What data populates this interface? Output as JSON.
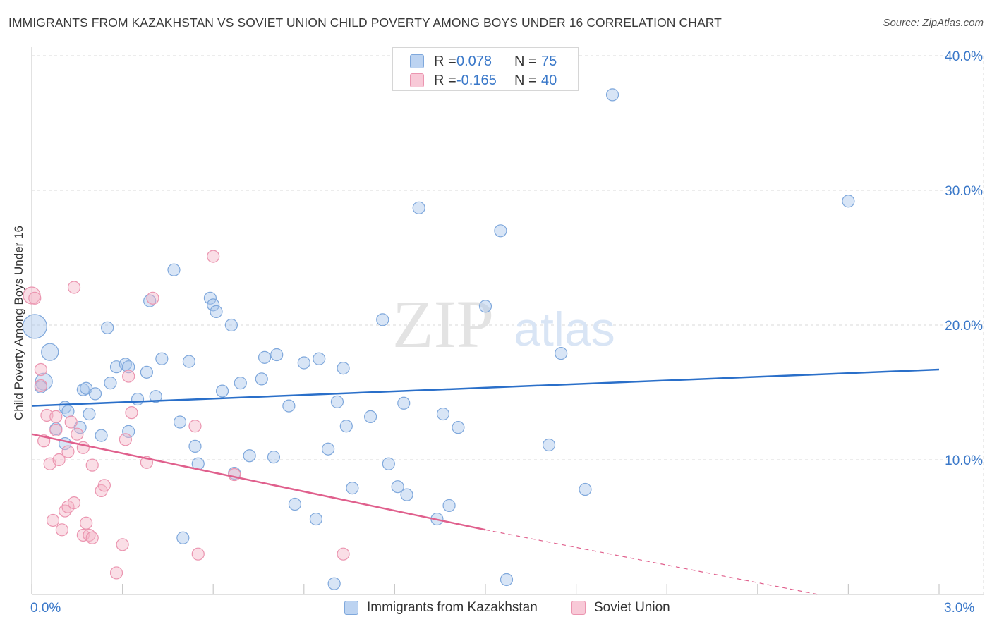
{
  "title": "IMMIGRANTS FROM KAZAKHSTAN VS SOVIET UNION CHILD POVERTY AMONG BOYS UNDER 16 CORRELATION CHART",
  "source": "Source: ZipAtlas.com",
  "watermark": {
    "zip": "ZIP",
    "atlas": "atlas"
  },
  "legend": {
    "rows": [
      {
        "r_label": "R =",
        "r_value": "0.078",
        "n_label": "N =",
        "n_value": "75"
      },
      {
        "r_label": "R =",
        "r_value": "-0.165",
        "n_label": "N =",
        "n_value": "40"
      }
    ],
    "bottom": [
      "Immigrants from Kazakhstan",
      "Soviet Union"
    ]
  },
  "colors": {
    "blue_fill": "#a9c6ec",
    "blue_stroke": "#7fa8dc",
    "blue_line": "#2a6fc9",
    "pink_fill": "#f4b5c8",
    "pink_stroke": "#eb95b0",
    "pink_line": "#e0608d",
    "grid": "#d8d8d8",
    "axis": "#9a9a9a",
    "tick_text": "#3a78c9"
  },
  "chart_data": {
    "type": "scatter",
    "title": "IMMIGRANTS FROM KAZAKHSTAN VS SOVIET UNION CHILD POVERTY AMONG BOYS UNDER 16 CORRELATION CHART",
    "xlabel": "",
    "ylabel": "Child Poverty Among Boys Under 16",
    "xlim": [
      0,
      3.0
    ],
    "ylim": [
      0,
      40
    ],
    "x_tick_labels": [
      "0.0%",
      "3.0%"
    ],
    "y_ticks": [
      10,
      20,
      30,
      40
    ],
    "y_tick_labels": [
      "10.0%",
      "20.0%",
      "30.0%",
      "40.0%"
    ],
    "grid": true,
    "series": [
      {
        "name": "Immigrants from Kazakhstan",
        "color": "blue",
        "trend": {
          "x0": 0,
          "y0": 14.0,
          "x1": 3.0,
          "y1": 16.7
        },
        "points": [
          {
            "x": 0.01,
            "y": 19.9,
            "s": 3
          },
          {
            "x": 0.06,
            "y": 18.0,
            "s": 2
          },
          {
            "x": 0.04,
            "y": 15.8,
            "s": 2
          },
          {
            "x": 0.03,
            "y": 15.4,
            "s": 1
          },
          {
            "x": 0.08,
            "y": 12.3,
            "s": 1
          },
          {
            "x": 0.11,
            "y": 13.9,
            "s": 1
          },
          {
            "x": 0.12,
            "y": 13.6,
            "s": 1
          },
          {
            "x": 0.11,
            "y": 11.2,
            "s": 1
          },
          {
            "x": 0.17,
            "y": 15.2,
            "s": 1
          },
          {
            "x": 0.18,
            "y": 15.3,
            "s": 1
          },
          {
            "x": 0.21,
            "y": 14.9,
            "s": 1
          },
          {
            "x": 0.19,
            "y": 13.4,
            "s": 1
          },
          {
            "x": 0.16,
            "y": 12.4,
            "s": 1
          },
          {
            "x": 0.23,
            "y": 11.8,
            "s": 1
          },
          {
            "x": 0.25,
            "y": 19.8,
            "s": 1
          },
          {
            "x": 0.26,
            "y": 15.7,
            "s": 1
          },
          {
            "x": 0.28,
            "y": 16.9,
            "s": 1
          },
          {
            "x": 0.31,
            "y": 17.1,
            "s": 1
          },
          {
            "x": 0.32,
            "y": 16.9,
            "s": 1
          },
          {
            "x": 0.32,
            "y": 12.1,
            "s": 1
          },
          {
            "x": 0.35,
            "y": 14.5,
            "s": 1
          },
          {
            "x": 0.38,
            "y": 16.5,
            "s": 1
          },
          {
            "x": 0.39,
            "y": 21.8,
            "s": 1
          },
          {
            "x": 0.41,
            "y": 14.7,
            "s": 1
          },
          {
            "x": 0.43,
            "y": 17.5,
            "s": 1
          },
          {
            "x": 0.47,
            "y": 24.1,
            "s": 1
          },
          {
            "x": 0.49,
            "y": 12.8,
            "s": 1
          },
          {
            "x": 0.52,
            "y": 17.3,
            "s": 1
          },
          {
            "x": 0.54,
            "y": 11.0,
            "s": 1
          },
          {
            "x": 0.55,
            "y": 9.7,
            "s": 1
          },
          {
            "x": 0.5,
            "y": 4.2,
            "s": 1
          },
          {
            "x": 0.59,
            "y": 22.0,
            "s": 1
          },
          {
            "x": 0.6,
            "y": 21.5,
            "s": 1
          },
          {
            "x": 0.61,
            "y": 21.0,
            "s": 1
          },
          {
            "x": 0.63,
            "y": 15.1,
            "s": 1
          },
          {
            "x": 0.66,
            "y": 20.0,
            "s": 1
          },
          {
            "x": 0.67,
            "y": 9.0,
            "s": 1
          },
          {
            "x": 0.69,
            "y": 15.7,
            "s": 1
          },
          {
            "x": 0.72,
            "y": 10.3,
            "s": 1
          },
          {
            "x": 0.76,
            "y": 16.0,
            "s": 1
          },
          {
            "x": 0.77,
            "y": 17.6,
            "s": 1
          },
          {
            "x": 0.8,
            "y": 10.2,
            "s": 1
          },
          {
            "x": 0.81,
            "y": 17.8,
            "s": 1
          },
          {
            "x": 0.85,
            "y": 14.0,
            "s": 1
          },
          {
            "x": 0.87,
            "y": 6.7,
            "s": 1
          },
          {
            "x": 0.9,
            "y": 17.2,
            "s": 1
          },
          {
            "x": 0.95,
            "y": 17.5,
            "s": 1
          },
          {
            "x": 0.94,
            "y": 5.6,
            "s": 1
          },
          {
            "x": 0.98,
            "y": 10.8,
            "s": 1
          },
          {
            "x": 1.0,
            "y": 0.8,
            "s": 1
          },
          {
            "x": 1.01,
            "y": 14.3,
            "s": 1
          },
          {
            "x": 1.03,
            "y": 16.8,
            "s": 1
          },
          {
            "x": 1.04,
            "y": 12.5,
            "s": 1
          },
          {
            "x": 1.06,
            "y": 7.9,
            "s": 1
          },
          {
            "x": 1.12,
            "y": 13.2,
            "s": 1
          },
          {
            "x": 1.16,
            "y": 20.4,
            "s": 1
          },
          {
            "x": 1.18,
            "y": 9.7,
            "s": 1
          },
          {
            "x": 1.21,
            "y": 8.0,
            "s": 1
          },
          {
            "x": 1.23,
            "y": 14.2,
            "s": 1
          },
          {
            "x": 1.24,
            "y": 7.4,
            "s": 1
          },
          {
            "x": 1.28,
            "y": 28.7,
            "s": 1
          },
          {
            "x": 1.34,
            "y": 5.6,
            "s": 1
          },
          {
            "x": 1.36,
            "y": 13.4,
            "s": 1
          },
          {
            "x": 1.38,
            "y": 6.6,
            "s": 1
          },
          {
            "x": 1.41,
            "y": 12.4,
            "s": 1
          },
          {
            "x": 1.5,
            "y": 21.4,
            "s": 1
          },
          {
            "x": 1.55,
            "y": 27.0,
            "s": 1
          },
          {
            "x": 1.57,
            "y": 1.1,
            "s": 1
          },
          {
            "x": 1.71,
            "y": 11.1,
            "s": 1
          },
          {
            "x": 1.75,
            "y": 17.9,
            "s": 1
          },
          {
            "x": 1.83,
            "y": 7.8,
            "s": 1
          },
          {
            "x": 1.92,
            "y": 37.1,
            "s": 1
          },
          {
            "x": 2.7,
            "y": 29.2,
            "s": 1
          }
        ]
      },
      {
        "name": "Soviet Union",
        "color": "pink",
        "trend": {
          "x0": 0,
          "y0": 11.9,
          "x1": 1.5,
          "y1": 4.8,
          "dash_x1": 2.6,
          "dash_y1": 0
        },
        "points": [
          {
            "x": 0.0,
            "y": 22.2,
            "s": 2
          },
          {
            "x": 0.01,
            "y": 22.0,
            "s": 1
          },
          {
            "x": 0.03,
            "y": 16.7,
            "s": 1
          },
          {
            "x": 0.03,
            "y": 15.5,
            "s": 1
          },
          {
            "x": 0.04,
            "y": 11.4,
            "s": 1
          },
          {
            "x": 0.05,
            "y": 13.3,
            "s": 1
          },
          {
            "x": 0.06,
            "y": 9.7,
            "s": 1
          },
          {
            "x": 0.07,
            "y": 5.5,
            "s": 1
          },
          {
            "x": 0.08,
            "y": 13.2,
            "s": 1
          },
          {
            "x": 0.08,
            "y": 12.2,
            "s": 1
          },
          {
            "x": 0.09,
            "y": 10.0,
            "s": 1
          },
          {
            "x": 0.1,
            "y": 4.8,
            "s": 1
          },
          {
            "x": 0.11,
            "y": 6.2,
            "s": 1
          },
          {
            "x": 0.12,
            "y": 6.5,
            "s": 1
          },
          {
            "x": 0.12,
            "y": 10.6,
            "s": 1
          },
          {
            "x": 0.13,
            "y": 12.8,
            "s": 1
          },
          {
            "x": 0.14,
            "y": 6.8,
            "s": 1
          },
          {
            "x": 0.14,
            "y": 22.8,
            "s": 1
          },
          {
            "x": 0.15,
            "y": 11.9,
            "s": 1
          },
          {
            "x": 0.17,
            "y": 10.9,
            "s": 1
          },
          {
            "x": 0.17,
            "y": 4.4,
            "s": 1
          },
          {
            "x": 0.18,
            "y": 5.3,
            "s": 1
          },
          {
            "x": 0.19,
            "y": 4.4,
            "s": 1
          },
          {
            "x": 0.2,
            "y": 4.2,
            "s": 1
          },
          {
            "x": 0.2,
            "y": 9.6,
            "s": 1
          },
          {
            "x": 0.23,
            "y": 7.7,
            "s": 1
          },
          {
            "x": 0.24,
            "y": 8.1,
            "s": 1
          },
          {
            "x": 0.28,
            "y": 1.6,
            "s": 1
          },
          {
            "x": 0.3,
            "y": 3.7,
            "s": 1
          },
          {
            "x": 0.31,
            "y": 11.5,
            "s": 1
          },
          {
            "x": 0.32,
            "y": 16.2,
            "s": 1
          },
          {
            "x": 0.33,
            "y": 13.5,
            "s": 1
          },
          {
            "x": 0.38,
            "y": 9.8,
            "s": 1
          },
          {
            "x": 0.4,
            "y": 22.0,
            "s": 1
          },
          {
            "x": 0.54,
            "y": 12.5,
            "s": 1
          },
          {
            "x": 0.55,
            "y": 3.0,
            "s": 1
          },
          {
            "x": 0.6,
            "y": 25.1,
            "s": 1
          },
          {
            "x": 0.67,
            "y": 8.9,
            "s": 1
          },
          {
            "x": 1.03,
            "y": 3.0,
            "s": 1
          }
        ]
      }
    ]
  }
}
